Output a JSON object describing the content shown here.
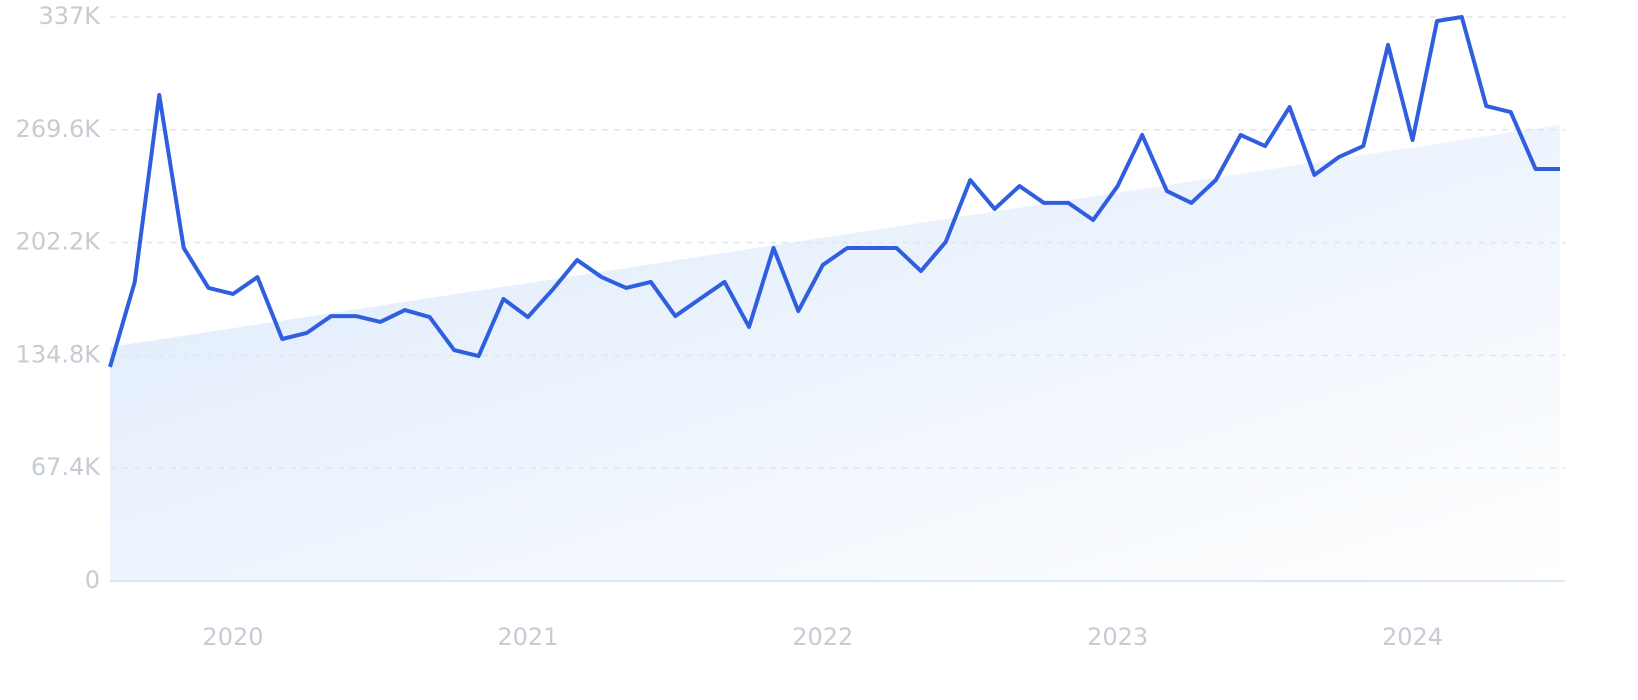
{
  "chart_data": {
    "type": "line",
    "x": [
      2019.583,
      2019.667,
      2019.75,
      2019.833,
      2019.917,
      2020.0,
      2020.083,
      2020.167,
      2020.25,
      2020.333,
      2020.417,
      2020.5,
      2020.583,
      2020.667,
      2020.75,
      2020.833,
      2020.917,
      2021.0,
      2021.083,
      2021.167,
      2021.25,
      2021.333,
      2021.417,
      2021.5,
      2021.583,
      2021.667,
      2021.75,
      2021.833,
      2021.917,
      2022.0,
      2022.083,
      2022.167,
      2022.25,
      2022.333,
      2022.417,
      2022.5,
      2022.583,
      2022.667,
      2022.75,
      2022.833,
      2022.917,
      2023.0,
      2023.083,
      2023.167,
      2023.25,
      2023.333,
      2023.417,
      2023.5,
      2023.583,
      2023.667,
      2023.75,
      2023.833,
      2023.917,
      2024.0,
      2024.083,
      2024.167,
      2024.25,
      2024.333,
      2024.417,
      2024.5
    ],
    "series": [
      {
        "color": "#2f5fdf",
        "values": [
          127.9,
          178.7,
          290.4,
          199.0,
          175.1,
          171.5,
          181.6,
          144.6,
          148.2,
          158.3,
          158.3,
          154.8,
          161.9,
          157.7,
          138.0,
          134.4,
          168.5,
          157.7,
          173.9,
          191.8,
          181.6,
          175.1,
          178.7,
          158.3,
          168.5,
          178.7,
          151.8,
          199.0,
          161.3,
          188.8,
          199.0,
          199.0,
          199.0,
          185.2,
          202.6,
          239.6,
          222.3,
          236.0,
          225.9,
          225.9,
          215.7,
          236.0,
          266.5,
          233.0,
          225.9,
          239.6,
          266.5,
          259.9,
          283.2,
          242.6,
          253.3,
          259.9,
          320.3,
          263.5,
          334.6,
          337.0,
          283.8,
          280.2,
          246.2,
          246.2
        ]
      }
    ],
    "trend": {
      "x": [
        2019.583,
        2024.5
      ],
      "values": [
        139.8,
        272.5
      ],
      "color": "#dce9fb"
    },
    "xlim": [
      2019.583,
      2024.5
    ],
    "xticks": [
      2020,
      2021,
      2022,
      2023,
      2024
    ],
    "ylim": [
      0,
      337
    ],
    "yticks": [
      0,
      {
        "value": 67.4,
        "label": "67.4K"
      },
      {
        "value": 134.8,
        "label": "134.8K"
      },
      {
        "value": 202.2,
        "label": "202.2K"
      },
      {
        "value": 269.6,
        "label": "269.6K"
      },
      {
        "value": 337,
        "label": "337K"
      }
    ],
    "grid": true
  }
}
